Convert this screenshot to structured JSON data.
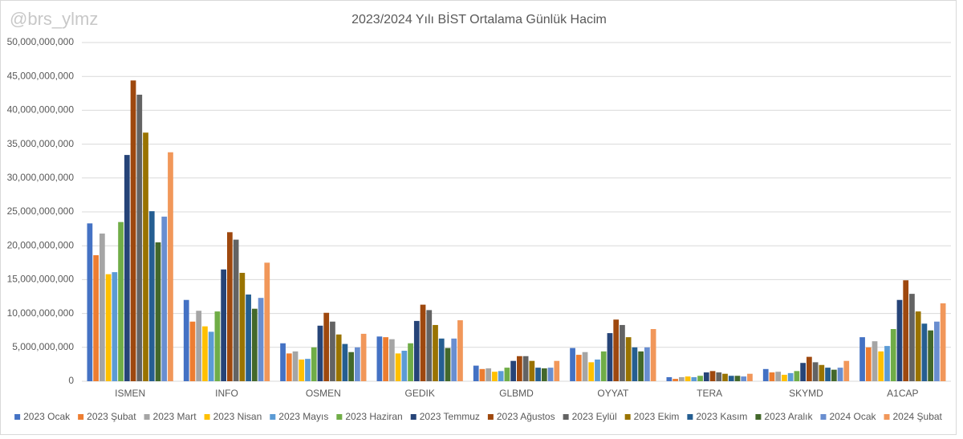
{
  "watermark": "@brs_ylmz",
  "chart_data": {
    "type": "bar",
    "title": "2023/2024 Yılı BİST Ortalama Günlük Hacim",
    "categories": [
      "ISMEN",
      "INFO",
      "OSMEN",
      "GEDIK",
      "GLBMD",
      "OYYAT",
      "TERA",
      "SKYMD",
      "A1CAP"
    ],
    "ylim": [
      0,
      50000000000
    ],
    "yticks": [
      0,
      {
        "value": 5000000000,
        "label": "5,000,000,000"
      },
      {
        "value": 10000000000,
        "label": "10,000,000,000"
      },
      {
        "value": 15000000000,
        "label": "15,000,000,000"
      },
      {
        "value": 20000000000,
        "label": "20,000,000,000"
      },
      {
        "value": 25000000000,
        "label": "25,000,000,000"
      },
      {
        "value": 30000000000,
        "label": "30,000,000,000"
      },
      {
        "value": 35000000000,
        "label": "35,000,000,000"
      },
      {
        "value": 40000000000,
        "label": "40,000,000,000"
      },
      {
        "value": 45000000000,
        "label": "45,000,000,000"
      },
      {
        "value": 50000000000,
        "label": "50,000,000,000"
      }
    ],
    "grid": true,
    "legend": "bottom",
    "series": [
      {
        "name": "2023 Ocak",
        "color": "#4472c4",
        "values": [
          23300000000,
          12000000000,
          5600000000,
          6600000000,
          2300000000,
          4900000000,
          600000000,
          1800000000,
          6500000000
        ]
      },
      {
        "name": "2023 Şubat",
        "color": "#ed7d31",
        "values": [
          18600000000,
          8800000000,
          4100000000,
          6500000000,
          1800000000,
          3900000000,
          350000000,
          1300000000,
          5000000000
        ]
      },
      {
        "name": "2023 Mart",
        "color": "#a5a5a5",
        "values": [
          21800000000,
          10400000000,
          4400000000,
          6200000000,
          1900000000,
          4300000000,
          600000000,
          1400000000,
          5900000000
        ]
      },
      {
        "name": "2023 Nisan",
        "color": "#ffc000",
        "values": [
          15800000000,
          8100000000,
          3200000000,
          4100000000,
          1400000000,
          2800000000,
          700000000,
          950000000,
          4400000000
        ]
      },
      {
        "name": "2023 Mayıs",
        "color": "#5b9bd5",
        "values": [
          16100000000,
          7300000000,
          3300000000,
          4500000000,
          1500000000,
          3200000000,
          600000000,
          1200000000,
          5200000000
        ]
      },
      {
        "name": "2023 Haziran",
        "color": "#70ad47",
        "values": [
          23500000000,
          10300000000,
          5000000000,
          5600000000,
          2000000000,
          4400000000,
          800000000,
          1500000000,
          7700000000
        ]
      },
      {
        "name": "2023 Temmuz",
        "color": "#264478",
        "values": [
          33400000000,
          16500000000,
          8200000000,
          8900000000,
          3000000000,
          7100000000,
          1300000000,
          2700000000,
          12000000000
        ]
      },
      {
        "name": "2023 Ağustos",
        "color": "#9e480e",
        "values": [
          44400000000,
          22000000000,
          10100000000,
          11300000000,
          3700000000,
          9100000000,
          1500000000,
          3600000000,
          14900000000
        ]
      },
      {
        "name": "2023 Eylül",
        "color": "#636363",
        "values": [
          42300000000,
          20900000000,
          8800000000,
          10500000000,
          3700000000,
          8300000000,
          1300000000,
          2800000000,
          12900000000
        ]
      },
      {
        "name": "2023 Ekim",
        "color": "#997300",
        "values": [
          36700000000,
          16000000000,
          6900000000,
          8300000000,
          3000000000,
          6500000000,
          1100000000,
          2400000000,
          10300000000
        ]
      },
      {
        "name": "2023 Kasım",
        "color": "#255e91",
        "values": [
          25100000000,
          12800000000,
          5500000000,
          6300000000,
          2000000000,
          5000000000,
          800000000,
          2000000000,
          8500000000
        ]
      },
      {
        "name": "2023 Aralık",
        "color": "#43682b",
        "values": [
          20500000000,
          10700000000,
          4300000000,
          4900000000,
          1900000000,
          4400000000,
          800000000,
          1700000000,
          7500000000
        ]
      },
      {
        "name": "2024 Ocak",
        "color": "#698ed0",
        "values": [
          24300000000,
          12300000000,
          5000000000,
          6300000000,
          2000000000,
          5000000000,
          700000000,
          2000000000,
          8800000000
        ]
      },
      {
        "name": "2024 Şubat",
        "color": "#f1975a",
        "values": [
          33800000000,
          17500000000,
          7000000000,
          9000000000,
          3000000000,
          7700000000,
          1100000000,
          3000000000,
          11500000000
        ]
      }
    ]
  }
}
